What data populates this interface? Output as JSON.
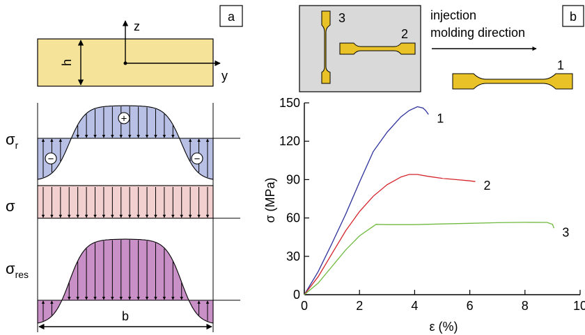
{
  "panels": {
    "a": "a",
    "b": "b"
  },
  "beam": {
    "axis_z": "z",
    "axis_y": "y",
    "height_label": "h",
    "width_label": "b",
    "fill_color": "#f6e39a"
  },
  "stress_rows": [
    {
      "label": "σ",
      "sub": "r",
      "fill": "#b9c0e6"
    },
    {
      "label": "σ",
      "sub": "",
      "fill": "#f3d0d0"
    },
    {
      "label": "σ",
      "sub": "res",
      "fill": "#c98fc7"
    }
  ],
  "signs": {
    "plus": "+",
    "minus": "−"
  },
  "specimens": {
    "inset_labels": [
      "3",
      "2"
    ],
    "direction_text": [
      "injection",
      "molding direction"
    ],
    "single_label": "1",
    "specimen_color": "#e8c227",
    "inset_bg": "#d9d9d9"
  },
  "chart_data": {
    "type": "line",
    "xlabel": "ε (%)",
    "ylabel": "σ (MPa)",
    "xlim": [
      0,
      10
    ],
    "ylim": [
      0,
      150
    ],
    "x_ticks": [
      0,
      2,
      4,
      6,
      8,
      10
    ],
    "y_ticks": [
      0,
      30,
      60,
      90,
      120,
      150
    ],
    "grid": false,
    "series": [
      {
        "name": "1",
        "color": "#2b2f9a",
        "points": [
          [
            0,
            0
          ],
          [
            0.5,
            18
          ],
          [
            1,
            40
          ],
          [
            1.5,
            63
          ],
          [
            2,
            88
          ],
          [
            2.5,
            112
          ],
          [
            3,
            127
          ],
          [
            3.5,
            139
          ],
          [
            3.8,
            144
          ],
          [
            4.1,
            147
          ],
          [
            4.3,
            146
          ],
          [
            4.4,
            144
          ],
          [
            4.5,
            141
          ]
        ]
      },
      {
        "name": "2",
        "color": "#d4232a",
        "points": [
          [
            0,
            0
          ],
          [
            0.5,
            14
          ],
          [
            1,
            32
          ],
          [
            1.5,
            50
          ],
          [
            2,
            65
          ],
          [
            2.5,
            77
          ],
          [
            3,
            86
          ],
          [
            3.5,
            92
          ],
          [
            3.8,
            94
          ],
          [
            4.1,
            94
          ],
          [
            4.5,
            92.5
          ],
          [
            5,
            91
          ],
          [
            5.5,
            90
          ],
          [
            6,
            89
          ],
          [
            6.2,
            88.5
          ]
        ]
      },
      {
        "name": "3",
        "color": "#6fba3f",
        "points": [
          [
            0,
            0
          ],
          [
            0.5,
            9
          ],
          [
            1,
            22
          ],
          [
            1.5,
            35
          ],
          [
            2,
            46
          ],
          [
            2.4,
            52
          ],
          [
            2.6,
            55
          ],
          [
            3,
            54.8
          ],
          [
            4,
            54.8
          ],
          [
            5,
            55.3
          ],
          [
            6,
            55.8
          ],
          [
            7,
            56.3
          ],
          [
            8,
            56.6
          ],
          [
            8.8,
            56.5
          ],
          [
            9,
            55
          ],
          [
            9.05,
            52
          ]
        ]
      }
    ]
  }
}
